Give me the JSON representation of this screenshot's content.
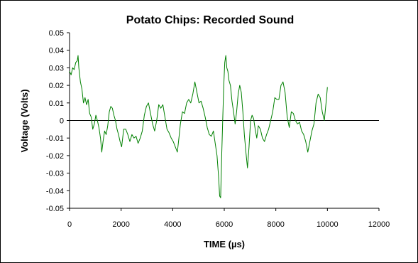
{
  "chart_data": {
    "type": "line",
    "title": "Potato Chips: Recorded Sound",
    "xlabel": "TIME (µs)",
    "ylabel": "Voltage (Volts)",
    "xlim": [
      0,
      12000
    ],
    "ylim": [
      -0.05,
      0.05
    ],
    "x_ticks": [
      "0",
      "2000",
      "4000",
      "6000",
      "8000",
      "10000",
      "12000"
    ],
    "y_ticks": [
      "0.05",
      "0.04",
      "0.03",
      "0.02",
      "0.01",
      "0",
      "-0.01",
      "-0.02",
      "-0.03",
      "-0.04",
      "-0.05"
    ],
    "grid": false,
    "legend": "none",
    "series_color": "#008000",
    "series": [
      {
        "x": [
          0,
          60,
          120,
          180,
          240,
          300,
          330,
          360,
          420,
          480,
          540,
          600,
          660,
          720,
          780,
          840,
          900,
          960,
          1020,
          1080,
          1140,
          1200,
          1250,
          1300,
          1360,
          1420,
          1480,
          1540,
          1600,
          1660,
          1720,
          1780,
          1840,
          1900,
          1960,
          2020,
          2100,
          2180,
          2260,
          2340,
          2420,
          2500,
          2580,
          2660,
          2740,
          2820,
          2900,
          2980,
          3060,
          3140,
          3220,
          3300,
          3380,
          3460,
          3540,
          3620,
          3700,
          3780,
          3860,
          3940,
          4020,
          4100,
          4180,
          4240,
          4300,
          4380,
          4460,
          4540,
          4620,
          4700,
          4780,
          4860,
          4940,
          5020,
          5100,
          5180,
          5260,
          5340,
          5420,
          5500,
          5580,
          5660,
          5720,
          5780,
          5820,
          5860,
          5900,
          5940,
          5980,
          6020,
          6060,
          6100,
          6140,
          6180,
          6240,
          6300,
          6360,
          6420,
          6480,
          6540,
          6600,
          6660,
          6720,
          6780,
          6840,
          6900,
          6960,
          7020,
          7080,
          7140,
          7200,
          7260,
          7320,
          7400,
          7480,
          7560,
          7640,
          7720,
          7800,
          7880,
          7960,
          8040,
          8120,
          8200,
          8280,
          8360,
          8440,
          8520,
          8600,
          8680,
          8760,
          8840,
          8920,
          9000,
          9080,
          9160,
          9240,
          9320,
          9400,
          9480,
          9560,
          9640,
          9720,
          9800,
          9880,
          9960,
          10000
        ],
        "y": [
          0.028,
          0.026,
          0.03,
          0.029,
          0.033,
          0.034,
          0.037,
          0.03,
          0.022,
          0.018,
          0.01,
          0.013,
          0.009,
          0.012,
          0.004,
          0.002,
          -0.005,
          -0.002,
          0.003,
          0.0,
          -0.004,
          -0.01,
          -0.018,
          -0.012,
          -0.006,
          -0.008,
          -0.003,
          0.005,
          0.008,
          0.007,
          0.003,
          0.0,
          -0.005,
          -0.008,
          -0.012,
          -0.015,
          -0.005,
          -0.005,
          -0.008,
          -0.012,
          -0.008,
          -0.01,
          -0.009,
          -0.013,
          -0.01,
          -0.006,
          0.003,
          0.008,
          0.01,
          0.004,
          -0.002,
          -0.006,
          0.0,
          0.009,
          0.007,
          0.009,
          0.002,
          -0.005,
          -0.007,
          -0.01,
          -0.012,
          -0.015,
          -0.018,
          -0.01,
          -0.002,
          0.005,
          0.004,
          0.01,
          0.012,
          0.01,
          0.015,
          0.022,
          0.016,
          0.01,
          0.011,
          0.007,
          0.002,
          -0.004,
          -0.008,
          -0.009,
          -0.006,
          -0.014,
          -0.02,
          -0.032,
          -0.043,
          -0.044,
          -0.02,
          0.0,
          0.02,
          0.033,
          0.037,
          0.03,
          0.028,
          0.023,
          0.02,
          0.011,
          0.005,
          -0.002,
          0.005,
          0.015,
          0.02,
          0.016,
          0.005,
          -0.008,
          -0.018,
          -0.027,
          -0.015,
          0.0,
          0.003,
          0.001,
          -0.005,
          -0.01,
          -0.003,
          -0.005,
          -0.01,
          -0.012,
          -0.008,
          -0.005,
          0.0,
          0.005,
          0.013,
          0.012,
          0.012,
          0.02,
          0.022,
          0.016,
          0.002,
          -0.004,
          0.005,
          0.004,
          0.0,
          -0.002,
          -0.001,
          -0.006,
          -0.008,
          -0.012,
          -0.018,
          -0.012,
          -0.006,
          -0.002,
          0.01,
          0.015,
          0.013,
          0.005,
          0.0,
          0.012,
          0.019
        ]
      }
    ]
  }
}
